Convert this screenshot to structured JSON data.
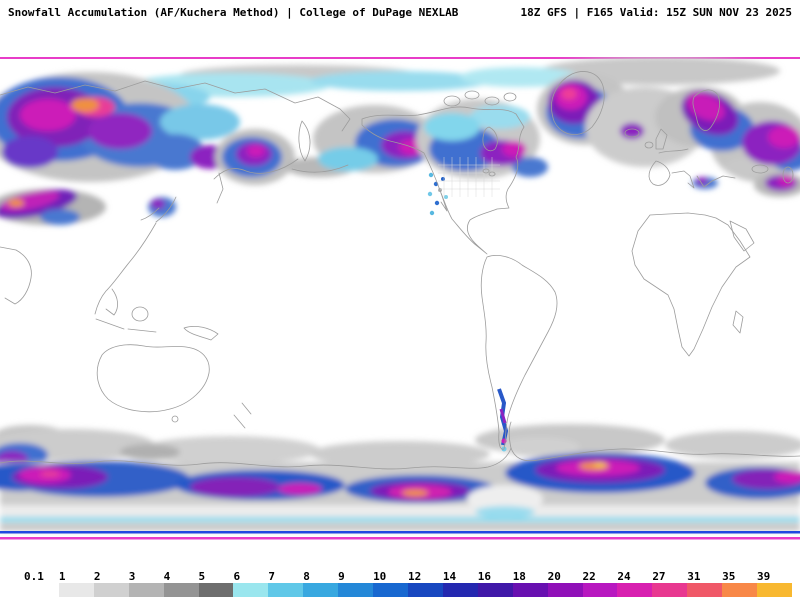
{
  "header": {
    "title": "Snowfall Accumulation (AF/Kuchera Method) | College of DuPage NEXLAB",
    "model_info": "18Z GFS | F165 Valid: 15Z SUN NOV 23 2025"
  },
  "legend": {
    "labels": [
      "0.1",
      "1",
      "2",
      "3",
      "4",
      "5",
      "6",
      "7",
      "8",
      "9",
      "10",
      "12",
      "14",
      "16",
      "18",
      "20",
      "22",
      "24",
      "27",
      "31",
      "35",
      "39"
    ],
    "colors": [
      "#ffffff",
      "#e8e8e8",
      "#d0d0d0",
      "#b4b4b4",
      "#949494",
      "#6e6e6e",
      "#9ae6ee",
      "#60c8e8",
      "#38a8e0",
      "#2488d8",
      "#1868d0",
      "#1848c0",
      "#2428b0",
      "#4018a8",
      "#6810b0",
      "#9010b8",
      "#b818c0",
      "#d820b0",
      "#e83890",
      "#f05868",
      "#f88848",
      "#f8b830"
    ]
  }
}
